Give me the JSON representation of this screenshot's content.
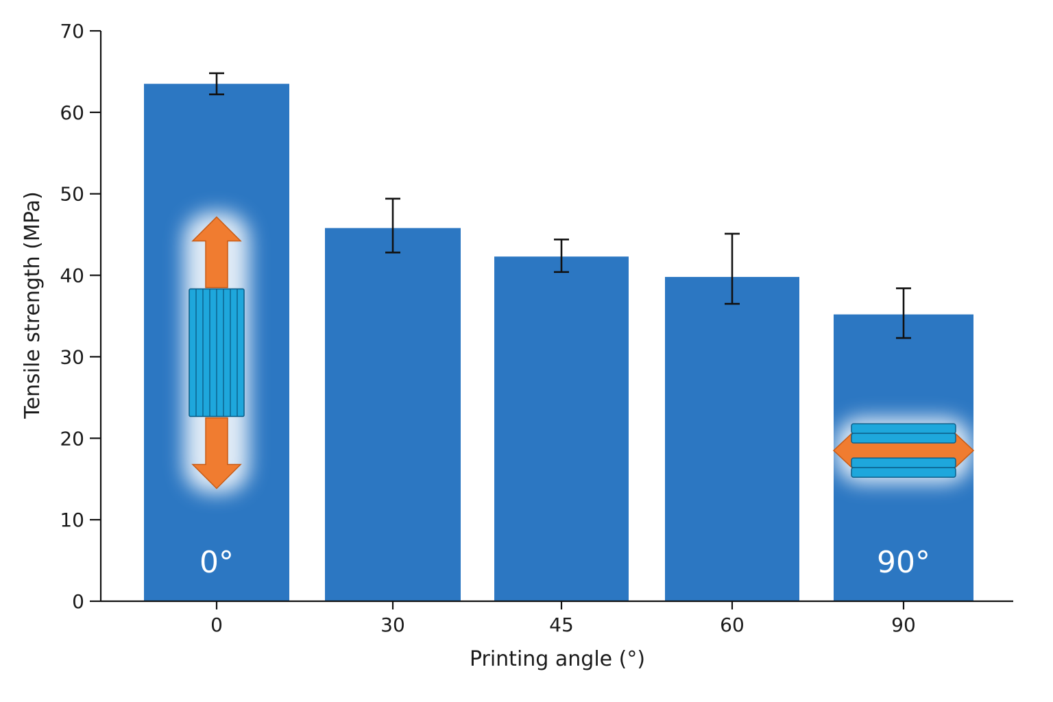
{
  "chart_data": {
    "type": "bar",
    "title": "",
    "xlabel": "Printing angle (°)",
    "ylabel": "Tensile strength (MPa)",
    "categories": [
      "0",
      "30",
      "45",
      "60",
      "90"
    ],
    "values": [
      63.5,
      45.8,
      42.3,
      39.8,
      35.2
    ],
    "error_low": [
      62.2,
      42.8,
      40.4,
      36.5,
      32.3
    ],
    "error_high": [
      64.8,
      49.4,
      44.4,
      45.1,
      38.4
    ],
    "ylim": [
      0,
      70
    ],
    "yticks": [
      0,
      10,
      20,
      30,
      40,
      50,
      60,
      70
    ],
    "grid": false,
    "legend": "none",
    "bar_color": "#2c77c2",
    "accent_color": "#f07c30",
    "layer_color": "#1ea7dc",
    "annotations": [
      {
        "category": "0",
        "text": "0°",
        "y": 4.8
      },
      {
        "category": "90",
        "text": "90°",
        "y": 4.8
      }
    ],
    "illustrations": [
      {
        "category": "0",
        "name": "vertical-layer-specimen-illustration",
        "center_y": 30.5
      },
      {
        "category": "90",
        "name": "horizontal-layer-specimen-illustration",
        "center_y": 18.5
      }
    ]
  }
}
